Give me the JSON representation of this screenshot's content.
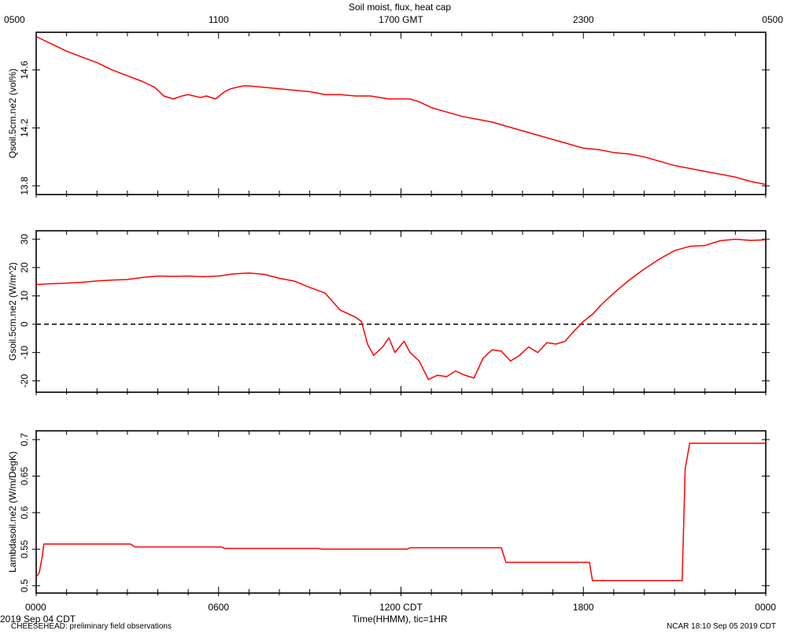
{
  "title": "Soil moist, flux, heat cap",
  "top_axis_labels": [
    "0500",
    "1100",
    "1700 GMT",
    "2300",
    "0500"
  ],
  "bottom_axis_labels": [
    "0000",
    "0600",
    "1200 CDT",
    "1800",
    "0000"
  ],
  "xlabel": "Time(HHMM), tic=1HR",
  "footer": {
    "left_date": "2019 Sep 04 CDT",
    "project": "CHEESEHEAD: preliminary field observations",
    "right_stamp": "NCAR 18:10 Sep 05 2019 CDT"
  },
  "colors": {
    "series": "#ff0000",
    "axes": "#000000",
    "zero_line": "#000000"
  },
  "chart_data": [
    {
      "type": "line",
      "ylabel": "Qsoil.5cm.ne2 (vol%)",
      "xlim": [
        0,
        24
      ],
      "ylim": [
        13.74,
        14.86
      ],
      "yticks": [
        13.8,
        14.2,
        14.6
      ],
      "x": [
        0,
        0.5,
        1,
        1.5,
        2,
        2.5,
        3,
        3.5,
        3.9,
        4.2,
        4.5,
        4.8,
        5,
        5.4,
        5.6,
        5.9,
        6.2,
        6.4,
        6.8,
        7,
        7.5,
        8,
        8.5,
        9,
        9.5,
        10,
        10.5,
        11,
        11.3,
        11.6,
        12,
        12.3,
        12.6,
        13,
        13.5,
        14,
        14.5,
        15,
        15.5,
        16,
        16.5,
        17,
        17.5,
        18,
        18.5,
        19,
        19.5,
        20,
        20.5,
        21,
        21.5,
        22,
        22.5,
        23,
        23.5,
        24
      ],
      "values": [
        14.83,
        14.78,
        14.73,
        14.69,
        14.65,
        14.6,
        14.56,
        14.52,
        14.48,
        14.42,
        14.4,
        14.42,
        14.43,
        14.41,
        14.42,
        14.4,
        14.45,
        14.47,
        14.49,
        14.49,
        14.48,
        14.47,
        14.46,
        14.45,
        14.43,
        14.43,
        14.42,
        14.42,
        14.41,
        14.4,
        14.4,
        14.4,
        14.38,
        14.34,
        14.31,
        14.28,
        14.26,
        14.24,
        14.21,
        14.18,
        14.15,
        14.12,
        14.09,
        14.06,
        14.05,
        14.03,
        14.02,
        14.0,
        13.97,
        13.94,
        13.92,
        13.9,
        13.88,
        13.86,
        13.83,
        13.81
      ]
    },
    {
      "type": "line",
      "ylabel": "Gsoil.5cm.ne2 (W/m^2)",
      "xlim": [
        0,
        24
      ],
      "ylim": [
        -24,
        33
      ],
      "yticks": [
        -20,
        -10,
        0,
        10,
        20,
        30
      ],
      "zero_line": true,
      "x": [
        0,
        0.5,
        1,
        1.5,
        2,
        2.5,
        3,
        3.5,
        4,
        4.5,
        5,
        5.5,
        6,
        6.5,
        7,
        7.5,
        8,
        8.5,
        9,
        9.5,
        10,
        10.5,
        10.7,
        10.9,
        11.1,
        11.4,
        11.6,
        11.8,
        12.1,
        12.3,
        12.6,
        12.9,
        13.2,
        13.5,
        13.8,
        14.1,
        14.4,
        14.7,
        15,
        15.3,
        15.6,
        15.9,
        16.2,
        16.5,
        16.8,
        17.1,
        17.4,
        17.7,
        18,
        18.3,
        18.6,
        19,
        19.5,
        20,
        20.5,
        21,
        21.5,
        22,
        22.5,
        23,
        23.5,
        24
      ],
      "values": [
        14,
        14.3,
        14.5,
        14.8,
        15.3,
        15.6,
        15.8,
        16.5,
        17,
        16.9,
        17,
        16.8,
        17,
        17.8,
        18.1,
        17.6,
        16.2,
        15.2,
        13,
        11,
        5,
        2.5,
        1,
        -7,
        -11,
        -8,
        -4.8,
        -10,
        -6,
        -10,
        -13,
        -19.5,
        -18,
        -18.5,
        -16.5,
        -18,
        -19,
        -12,
        -9,
        -9.5,
        -13,
        -11,
        -8,
        -10,
        -6.5,
        -7,
        -6,
        -2.3,
        1,
        3.5,
        7,
        11,
        15.5,
        19.5,
        23,
        26,
        27.5,
        27.8,
        29.5,
        30,
        29.6,
        29.8
      ]
    },
    {
      "type": "line",
      "ylabel": "Lambdasoil.ne2 (W/m/DegK)",
      "xlim": [
        0,
        24
      ],
      "ylim": [
        0.49,
        0.712
      ],
      "yticks": [
        0.5,
        0.55,
        0.6,
        0.65,
        0.7
      ],
      "x": [
        0,
        0.1,
        0.2,
        0.25,
        3.1,
        3.25,
        6.1,
        6.2,
        9.3,
        9.4,
        12.2,
        12.3,
        15.3,
        15.45,
        18.2,
        18.3,
        21.25,
        21.35,
        21.5,
        24
      ],
      "values": [
        0.512,
        0.518,
        0.54,
        0.557,
        0.557,
        0.553,
        0.553,
        0.551,
        0.551,
        0.55,
        0.55,
        0.552,
        0.552,
        0.532,
        0.532,
        0.507,
        0.507,
        0.66,
        0.695,
        0.695
      ]
    }
  ]
}
